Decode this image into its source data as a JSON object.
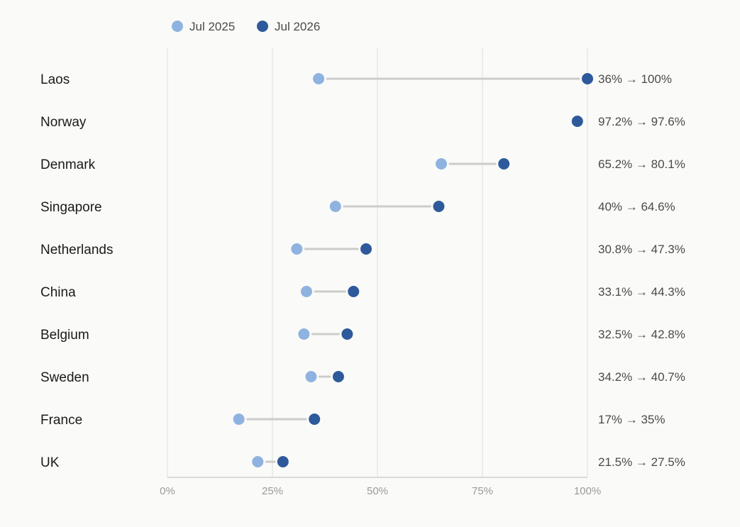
{
  "chart_data": {
    "type": "dumbbell",
    "categories": [
      "Laos",
      "Norway",
      "Denmark",
      "Singapore",
      "Netherlands",
      "China",
      "Belgium",
      "Sweden",
      "France",
      "UK"
    ],
    "series": [
      {
        "name": "Jul 2025",
        "color": "#8fb3e0",
        "values": [
          36,
          97.2,
          65.2,
          40,
          30.8,
          33.1,
          32.5,
          34.2,
          17,
          21.5
        ]
      },
      {
        "name": "Jul 2026",
        "color": "#2e5a9c",
        "values": [
          100,
          97.6,
          80.1,
          64.6,
          47.3,
          44.3,
          42.8,
          40.7,
          35,
          27.5
        ]
      }
    ],
    "change_labels": [
      "36% → 100%",
      "97.2% → 97.6%",
      "65.2% → 80.1%",
      "40% → 64.6%",
      "30.8% → 47.3%",
      "33.1% → 44.3%",
      "32.5% → 42.8%",
      "34.2% → 40.7%",
      "17% → 35%",
      "21.5% → 27.5%"
    ],
    "x_ticks": [
      0,
      25,
      50,
      75,
      100
    ],
    "x_tick_labels": [
      "0%",
      "25%",
      "50%",
      "75%",
      "100%"
    ],
    "xlim": [
      0,
      100
    ],
    "grid": true,
    "legend_position": "top-left",
    "connector_color": "#cccccc",
    "grid_color": "#e2e2e2",
    "axis_color": "#cfcfcf"
  }
}
